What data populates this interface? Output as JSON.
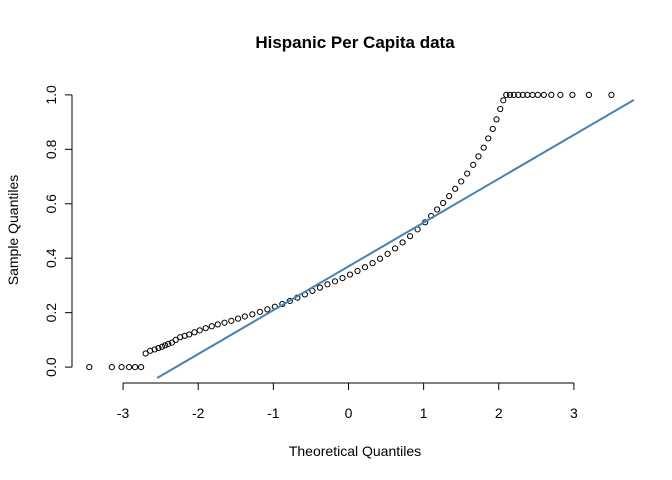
{
  "chart_data": {
    "type": "scatter",
    "subtype": "normal-qq-plot",
    "title": "Hispanic Per Capita data",
    "xlabel": "Theoretical Quantiles",
    "ylabel": "Sample Quantiles",
    "xlim": [
      -3.6,
      3.8
    ],
    "ylim": [
      -0.04,
      1.04
    ],
    "x_ticks": [
      "-3",
      "-2",
      "-1",
      "0",
      "1",
      "2",
      "3"
    ],
    "y_ticks": [
      "0.0",
      "0.2",
      "0.4",
      "0.6",
      "0.8",
      "1.0"
    ],
    "grid": false,
    "legend": "none",
    "reference_line": {
      "intercept": 0.37,
      "slope": 0.161,
      "color": "#4682b4"
    },
    "points": [
      [
        -3.45,
        0.0
      ],
      [
        -3.15,
        0.0
      ],
      [
        -3.02,
        0.0
      ],
      [
        -2.92,
        0.0
      ],
      [
        -2.84,
        0.0
      ],
      [
        -2.76,
        0.0
      ],
      [
        -2.7,
        0.05
      ],
      [
        -2.64,
        0.06
      ],
      [
        -2.58,
        0.065
      ],
      [
        -2.53,
        0.07
      ],
      [
        -2.48,
        0.075
      ],
      [
        -2.44,
        0.08
      ],
      [
        -2.4,
        0.085
      ],
      [
        -2.35,
        0.09
      ],
      [
        -2.3,
        0.1
      ],
      [
        -2.24,
        0.11
      ],
      [
        -2.18,
        0.115
      ],
      [
        -2.12,
        0.12
      ],
      [
        -2.05,
        0.128
      ],
      [
        -1.98,
        0.135
      ],
      [
        -1.9,
        0.143
      ],
      [
        -1.82,
        0.15
      ],
      [
        -1.74,
        0.157
      ],
      [
        -1.65,
        0.163
      ],
      [
        -1.56,
        0.17
      ],
      [
        -1.47,
        0.178
      ],
      [
        -1.38,
        0.186
      ],
      [
        -1.28,
        0.194
      ],
      [
        -1.18,
        0.203
      ],
      [
        -1.08,
        0.212
      ],
      [
        -0.98,
        0.222
      ],
      [
        -0.88,
        0.232
      ],
      [
        -0.78,
        0.243
      ],
      [
        -0.68,
        0.255
      ],
      [
        -0.58,
        0.267
      ],
      [
        -0.48,
        0.28
      ],
      [
        -0.38,
        0.292
      ],
      [
        -0.28,
        0.304
      ],
      [
        -0.18,
        0.315
      ],
      [
        -0.08,
        0.327
      ],
      [
        0.02,
        0.34
      ],
      [
        0.12,
        0.353
      ],
      [
        0.22,
        0.367
      ],
      [
        0.32,
        0.382
      ],
      [
        0.42,
        0.398
      ],
      [
        0.52,
        0.416
      ],
      [
        0.62,
        0.436
      ],
      [
        0.72,
        0.458
      ],
      [
        0.82,
        0.481
      ],
      [
        0.92,
        0.506
      ],
      [
        1.02,
        0.532
      ],
      [
        1.1,
        0.555
      ],
      [
        1.18,
        0.579
      ],
      [
        1.26,
        0.603
      ],
      [
        1.34,
        0.628
      ],
      [
        1.42,
        0.655
      ],
      [
        1.5,
        0.682
      ],
      [
        1.58,
        0.711
      ],
      [
        1.66,
        0.743
      ],
      [
        1.73,
        0.774
      ],
      [
        1.8,
        0.806
      ],
      [
        1.86,
        0.84
      ],
      [
        1.92,
        0.875
      ],
      [
        1.97,
        0.91
      ],
      [
        2.02,
        0.948
      ],
      [
        2.06,
        0.98
      ],
      [
        2.1,
        1.0
      ],
      [
        2.15,
        1.0
      ],
      [
        2.2,
        1.0
      ],
      [
        2.26,
        1.0
      ],
      [
        2.32,
        1.0
      ],
      [
        2.38,
        1.0
      ],
      [
        2.45,
        1.0
      ],
      [
        2.52,
        1.0
      ],
      [
        2.6,
        1.0
      ],
      [
        2.7,
        1.0
      ],
      [
        2.82,
        1.0
      ],
      [
        2.98,
        1.0
      ],
      [
        3.2,
        1.0
      ],
      [
        3.5,
        1.0
      ]
    ]
  }
}
